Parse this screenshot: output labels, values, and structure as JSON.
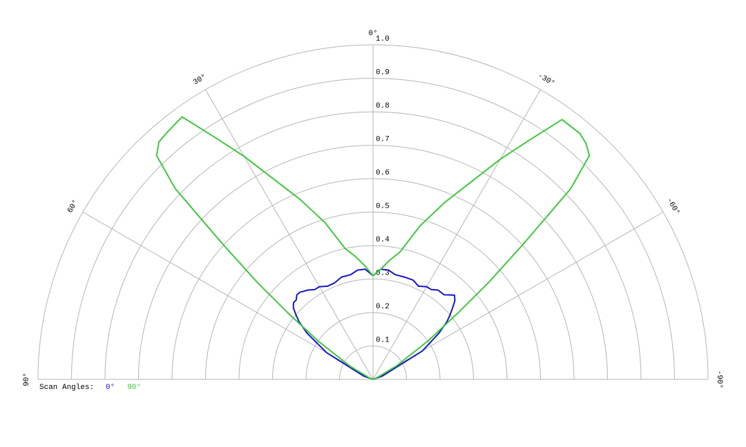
{
  "chart_data": {
    "type": "polar",
    "legend_title": "Scan Angles:",
    "x": [
      -90,
      -70,
      -60,
      -55,
      -52,
      -50,
      -48,
      -46,
      -44,
      -42,
      -40,
      -36,
      -33,
      -30,
      -26,
      -22,
      -17,
      -12,
      -8,
      -4,
      0,
      4,
      8,
      12,
      17,
      22,
      26,
      30,
      33,
      36,
      40,
      42,
      44,
      46,
      48,
      50,
      52,
      55,
      60,
      70,
      90
    ],
    "series": [
      {
        "name": "0°",
        "color": "#1414c8",
        "values": [
          0,
          0.03,
          0.17,
          0.24,
          0.28,
          0.3,
          0.32,
          0.34,
          0.35,
          0.34,
          0.33,
          0.33,
          0.32,
          0.32,
          0.31,
          0.32,
          0.32,
          0.32,
          0.33,
          0.33,
          0.31,
          0.33,
          0.33,
          0.32,
          0.32,
          0.31,
          0.31,
          0.32,
          0.32,
          0.33,
          0.34,
          0.34,
          0.33,
          0.33,
          0.32,
          0.3,
          0.28,
          0.24,
          0.16,
          0.03,
          0
        ]
      },
      {
        "name": "90°",
        "color": "#3cc83c",
        "values": [
          0,
          0.01,
          0.08,
          0.2,
          0.32,
          0.45,
          0.6,
          0.82,
          0.93,
          0.95,
          0.96,
          0.96,
          0.85,
          0.76,
          0.65,
          0.57,
          0.48,
          0.39,
          0.36,
          0.33,
          0.31,
          0.34,
          0.37,
          0.4,
          0.49,
          0.58,
          0.66,
          0.77,
          0.86,
          0.97,
          0.96,
          0.955,
          0.93,
          0.82,
          0.6,
          0.45,
          0.32,
          0.2,
          0.08,
          0.01,
          0
        ]
      }
    ],
    "xlim": [
      -90,
      90
    ],
    "xticks": [
      {
        "value": 90,
        "label": "90°"
      },
      {
        "value": 60,
        "label": "60°"
      },
      {
        "value": 30,
        "label": "30°"
      },
      {
        "value": 0,
        "label": "0°"
      },
      {
        "value": -30,
        "label": "-30°"
      },
      {
        "value": -60,
        "label": "-60°"
      },
      {
        "value": -90,
        "label": "-90°"
      }
    ],
    "ylim": [
      0,
      1
    ],
    "yticks": [
      0.1,
      0.2,
      0.3,
      0.4,
      0.5,
      0.6,
      0.7,
      0.8,
      0.9,
      {
        "value": 1,
        "label": "1.0"
      }
    ],
    "grid": true
  }
}
